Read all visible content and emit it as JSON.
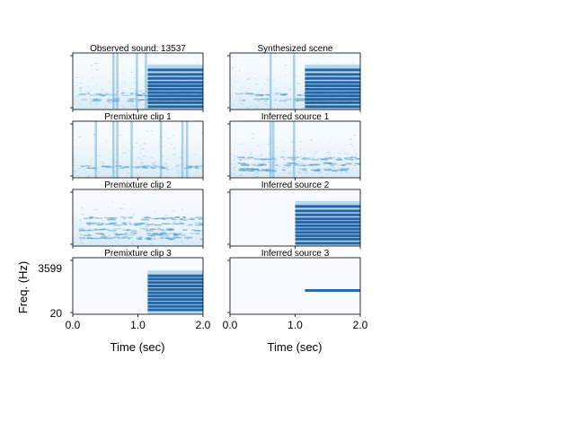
{
  "figure": {
    "x_label": "Time (sec)",
    "y_label": "Freq. (Hz)",
    "x_ticks": [
      "0.0",
      "1.0",
      "2.0"
    ],
    "y_ticks": [
      "20",
      "3599"
    ],
    "colormap": "Blues"
  },
  "chart_data": [
    {
      "type": "heatmap",
      "title": "Observed sound: 13537",
      "xlim": [
        0,
        2
      ],
      "content": {
        "noise_level": 0.16,
        "transients": [
          0.62,
          0.68,
          0.98,
          1.12
        ],
        "harmonic_start": 1.15,
        "harmonic_bands": [
          0.05,
          0.12,
          0.18,
          0.24,
          0.3,
          0.36,
          0.42,
          0.48,
          0.55,
          0.62,
          0.7
        ],
        "low_bands": [
          0.18,
          0.28
        ]
      }
    },
    {
      "type": "heatmap",
      "title": "Synthesized scene",
      "xlim": [
        0,
        2
      ],
      "content": {
        "noise_level": 0.12,
        "transients": [
          0.62,
          0.98
        ],
        "harmonic_start": 1.15,
        "harmonic_bands": [
          0.05,
          0.12,
          0.18,
          0.24,
          0.3,
          0.36,
          0.42,
          0.48,
          0.55,
          0.62,
          0.7
        ],
        "low_bands": [
          0.18,
          0.28
        ]
      }
    },
    {
      "type": "heatmap",
      "title": "Premixture clip 1",
      "xlim": [
        0,
        2
      ],
      "content": {
        "noise_level": 0.14,
        "transients": [
          0.35,
          0.62,
          0.68,
          0.9,
          1.35,
          1.68,
          1.75
        ],
        "harmonic_start": null,
        "harmonic_bands": [],
        "low_bands": [
          0.2
        ]
      }
    },
    {
      "type": "heatmap",
      "title": "Inferred source 1",
      "xlim": [
        0,
        2
      ],
      "content": {
        "noise_level": 0.18,
        "transients": [
          0.62,
          0.66,
          0.98
        ],
        "harmonic_start": null,
        "harmonic_bands": [],
        "low_bands": [
          0.15,
          0.25,
          0.35
        ]
      }
    },
    {
      "type": "heatmap",
      "title": "Premixture clip 2",
      "xlim": [
        0,
        2
      ],
      "content": {
        "noise_level": 0.1,
        "transients": [],
        "harmonic_start": null,
        "harmonic_bands": [],
        "low_bands": [
          0.15,
          0.22,
          0.3,
          0.4,
          0.5
        ]
      }
    },
    {
      "type": "heatmap",
      "title": "Inferred source 2",
      "xlim": [
        0,
        2
      ],
      "content": {
        "noise_level": 0.0,
        "transients": [],
        "harmonic_start": 1.0,
        "harmonic_bands": [
          0.05,
          0.12,
          0.18,
          0.24,
          0.3,
          0.36,
          0.42,
          0.48,
          0.55,
          0.62,
          0.7
        ],
        "low_bands": []
      }
    },
    {
      "type": "heatmap",
      "title": "Premixture clip 3",
      "xlim": [
        0,
        2
      ],
      "content": {
        "noise_level": 0.0,
        "transients": [],
        "harmonic_start": 1.15,
        "harmonic_bands": [
          0.08,
          0.14,
          0.2,
          0.26,
          0.32,
          0.38,
          0.44,
          0.5,
          0.56,
          0.62,
          0.68
        ],
        "low_bands": []
      }
    },
    {
      "type": "heatmap",
      "title": "Inferred source 3",
      "xlim": [
        0,
        2
      ],
      "content": {
        "noise_level": 0.0,
        "transients": [],
        "harmonic_start": 1.15,
        "harmonic_bands": [
          0.42
        ],
        "low_bands": []
      }
    }
  ]
}
